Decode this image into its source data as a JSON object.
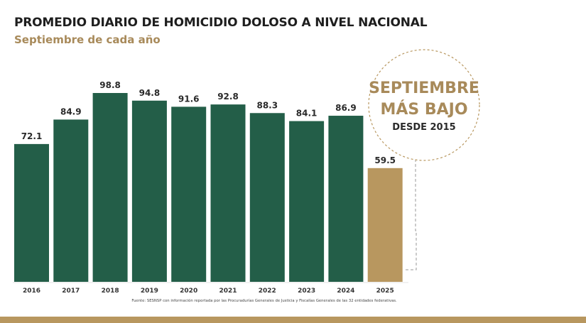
{
  "title": "PROMEDIO DIARIO DE HOMICIDIO DOLOSO A NIVEL NACIONAL",
  "subtitle": "Septiembre de cada año",
  "callout": {
    "line1": "SEPTIEMBRE",
    "line2": "MÁS BAJO",
    "line3": "DESDE 2015"
  },
  "source": "Fuente: SESNSP con información reportada por las Procuradurías Generales de Justicia y Fiscalías Generales de las 32 entidades federativas.",
  "colors": {
    "bar": "#235e48",
    "highlight": "#b8975f",
    "title": "#1e1e1e",
    "subtitle": "#a88a5a",
    "callout_text": "#a88a5a"
  },
  "chart_data": {
    "type": "bar",
    "categories": [
      "2016",
      "2017",
      "2018",
      "2019",
      "2020",
      "2021",
      "2022",
      "2023",
      "2024",
      "2025"
    ],
    "values": [
      72.1,
      84.9,
      98.8,
      94.8,
      91.6,
      92.8,
      88.3,
      84.1,
      86.9,
      59.5
    ],
    "highlight_category": "2025",
    "grid": false,
    "ylim": [
      0,
      100
    ]
  }
}
